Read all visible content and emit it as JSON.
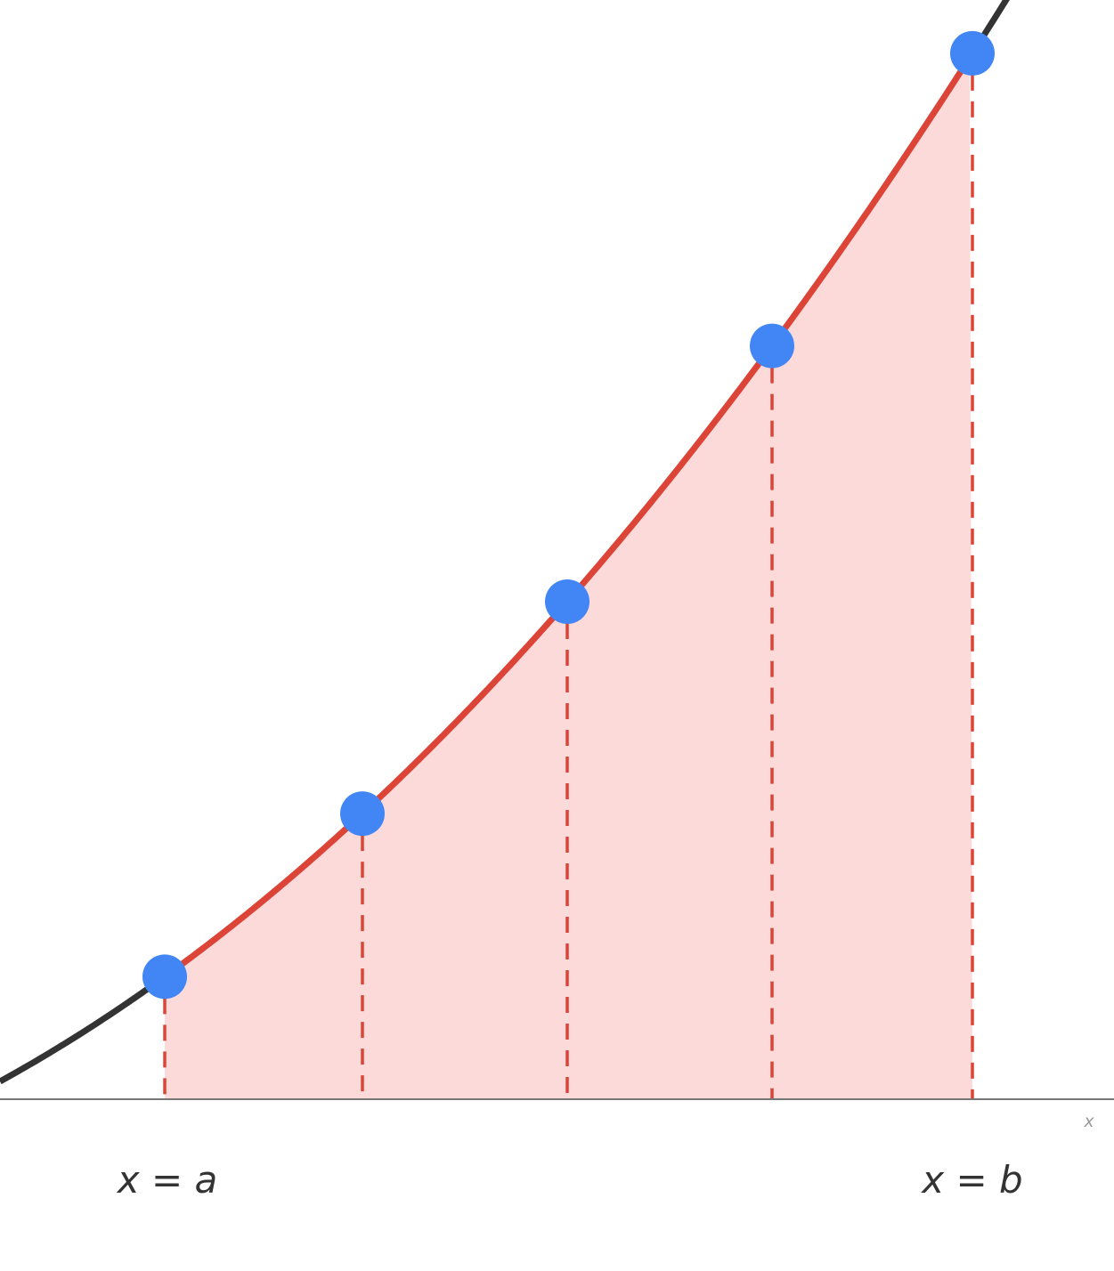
{
  "colors": {
    "background": "#ffffff",
    "curve_outside": "#333333",
    "curve_inside": "#db4437",
    "area_fill": "#fcdada",
    "sample_point": "#4285f4",
    "dashed_line": "#db4437",
    "axis": "#777777",
    "axis_label": "#9a9a9a"
  },
  "axis": {
    "x_label": "x"
  },
  "labels": {
    "lower_bound": "x = a",
    "upper_bound": "x = b"
  },
  "sample_points_count": 5
}
